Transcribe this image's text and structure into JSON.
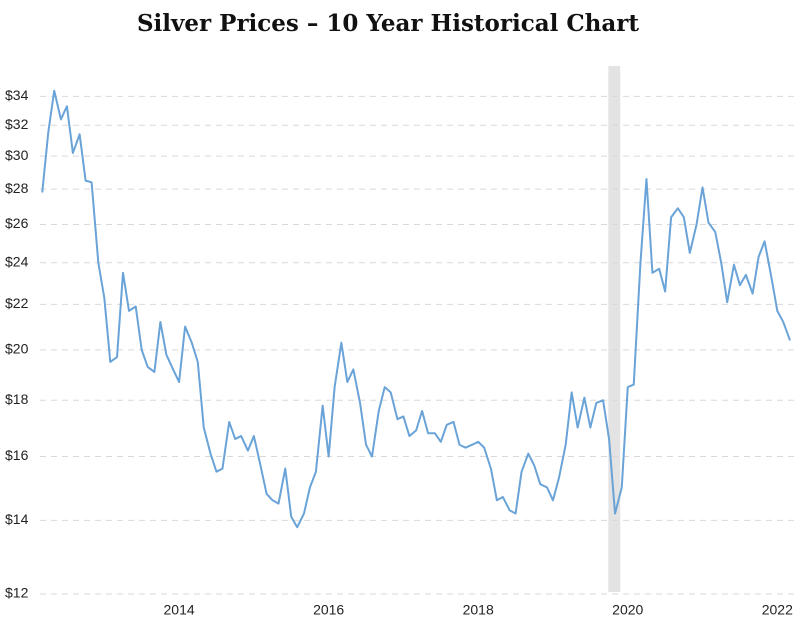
{
  "chart_data": {
    "type": "line",
    "title": "Silver Prices – 10 Year Historical Chart",
    "log_y": true,
    "grid": true,
    "color": "#6aa3d8",
    "shade": [
      2019.74,
      2019.9
    ],
    "shade_color": "#e3e3e3",
    "xlim": [
      2012.14,
      2022.25
    ],
    "xticks": [
      2014,
      2016,
      2018,
      2020,
      2022
    ],
    "ylim": [
      12,
      36
    ],
    "yticks": [
      {
        "value": 12,
        "label": "$12"
      },
      {
        "value": 14,
        "label": "$14"
      },
      {
        "value": 16,
        "label": "$16"
      },
      {
        "value": 18,
        "label": "$18"
      },
      {
        "value": 20,
        "label": "$20"
      },
      {
        "value": 22,
        "label": "$22"
      },
      {
        "value": 24,
        "label": "$24"
      },
      {
        "value": 26,
        "label": "$26"
      },
      {
        "value": 28,
        "label": "$28"
      },
      {
        "value": 30,
        "label": "$30"
      },
      {
        "value": 32,
        "label": "$32"
      },
      {
        "value": 34,
        "label": "$34"
      }
    ],
    "x": [
      2012.17,
      2012.25,
      2012.33,
      2012.42,
      2012.5,
      2012.58,
      2012.67,
      2012.75,
      2012.83,
      2012.92,
      2013.0,
      2013.08,
      2013.17,
      2013.25,
      2013.33,
      2013.42,
      2013.5,
      2013.58,
      2013.67,
      2013.75,
      2013.83,
      2013.92,
      2014.0,
      2014.08,
      2014.17,
      2014.25,
      2014.33,
      2014.42,
      2014.5,
      2014.58,
      2014.67,
      2014.75,
      2014.83,
      2014.92,
      2015.0,
      2015.08,
      2015.17,
      2015.25,
      2015.33,
      2015.42,
      2015.5,
      2015.58,
      2015.67,
      2015.75,
      2015.83,
      2015.92,
      2016.0,
      2016.08,
      2016.17,
      2016.25,
      2016.33,
      2016.42,
      2016.5,
      2016.58,
      2016.67,
      2016.75,
      2016.83,
      2016.92,
      2017.0,
      2017.08,
      2017.17,
      2017.25,
      2017.33,
      2017.42,
      2017.5,
      2017.58,
      2017.67,
      2017.75,
      2017.83,
      2017.92,
      2018.0,
      2018.08,
      2018.17,
      2018.25,
      2018.33,
      2018.42,
      2018.5,
      2018.58,
      2018.67,
      2018.75,
      2018.83,
      2018.92,
      2019.0,
      2019.08,
      2019.17,
      2019.25,
      2019.33,
      2019.42,
      2019.5,
      2019.58,
      2019.67,
      2019.75,
      2019.83,
      2019.92,
      2020.0,
      2020.08,
      2020.17,
      2020.25,
      2020.33,
      2020.42,
      2020.5,
      2020.58,
      2020.67,
      2020.75,
      2020.83,
      2020.92,
      2021.0,
      2021.08,
      2021.17,
      2021.25,
      2021.33,
      2021.42,
      2021.5,
      2021.58,
      2021.67,
      2021.75,
      2021.83,
      2021.92,
      2022.0,
      2022.08,
      2022.17
    ],
    "values": [
      27.8,
      31.5,
      34.4,
      32.4,
      33.3,
      30.2,
      31.4,
      28.5,
      28.4,
      24.0,
      22.3,
      19.5,
      19.7,
      23.5,
      21.7,
      21.9,
      20.0,
      19.3,
      19.1,
      21.2,
      19.8,
      19.2,
      18.7,
      21.0,
      20.3,
      19.5,
      17.0,
      16.1,
      15.5,
      15.6,
      17.2,
      16.6,
      16.7,
      16.2,
      16.7,
      15.8,
      14.8,
      14.6,
      14.5,
      15.6,
      14.1,
      13.8,
      14.2,
      15.0,
      15.5,
      17.8,
      16.0,
      18.5,
      20.3,
      18.7,
      19.2,
      17.9,
      16.4,
      16.0,
      17.6,
      18.5,
      18.3,
      17.3,
      17.4,
      16.7,
      16.9,
      17.6,
      16.8,
      16.8,
      16.5,
      17.1,
      17.2,
      16.4,
      16.3,
      16.4,
      16.5,
      16.3,
      15.6,
      14.6,
      14.7,
      14.3,
      14.2,
      15.5,
      16.1,
      15.7,
      15.1,
      15.0,
      14.6,
      15.3,
      16.4,
      18.3,
      17.0,
      18.1,
      17.0,
      17.9,
      18.0,
      16.6,
      14.2,
      15.0,
      18.5,
      18.6,
      24.0,
      28.6,
      23.5,
      23.7,
      22.6,
      26.4,
      26.9,
      26.4,
      24.5,
      26.0,
      28.1,
      26.1,
      25.6,
      24.0,
      22.1,
      23.9,
      22.9,
      23.4,
      22.5,
      24.3,
      25.1,
      23.3,
      21.7,
      21.2,
      20.4
    ]
  }
}
